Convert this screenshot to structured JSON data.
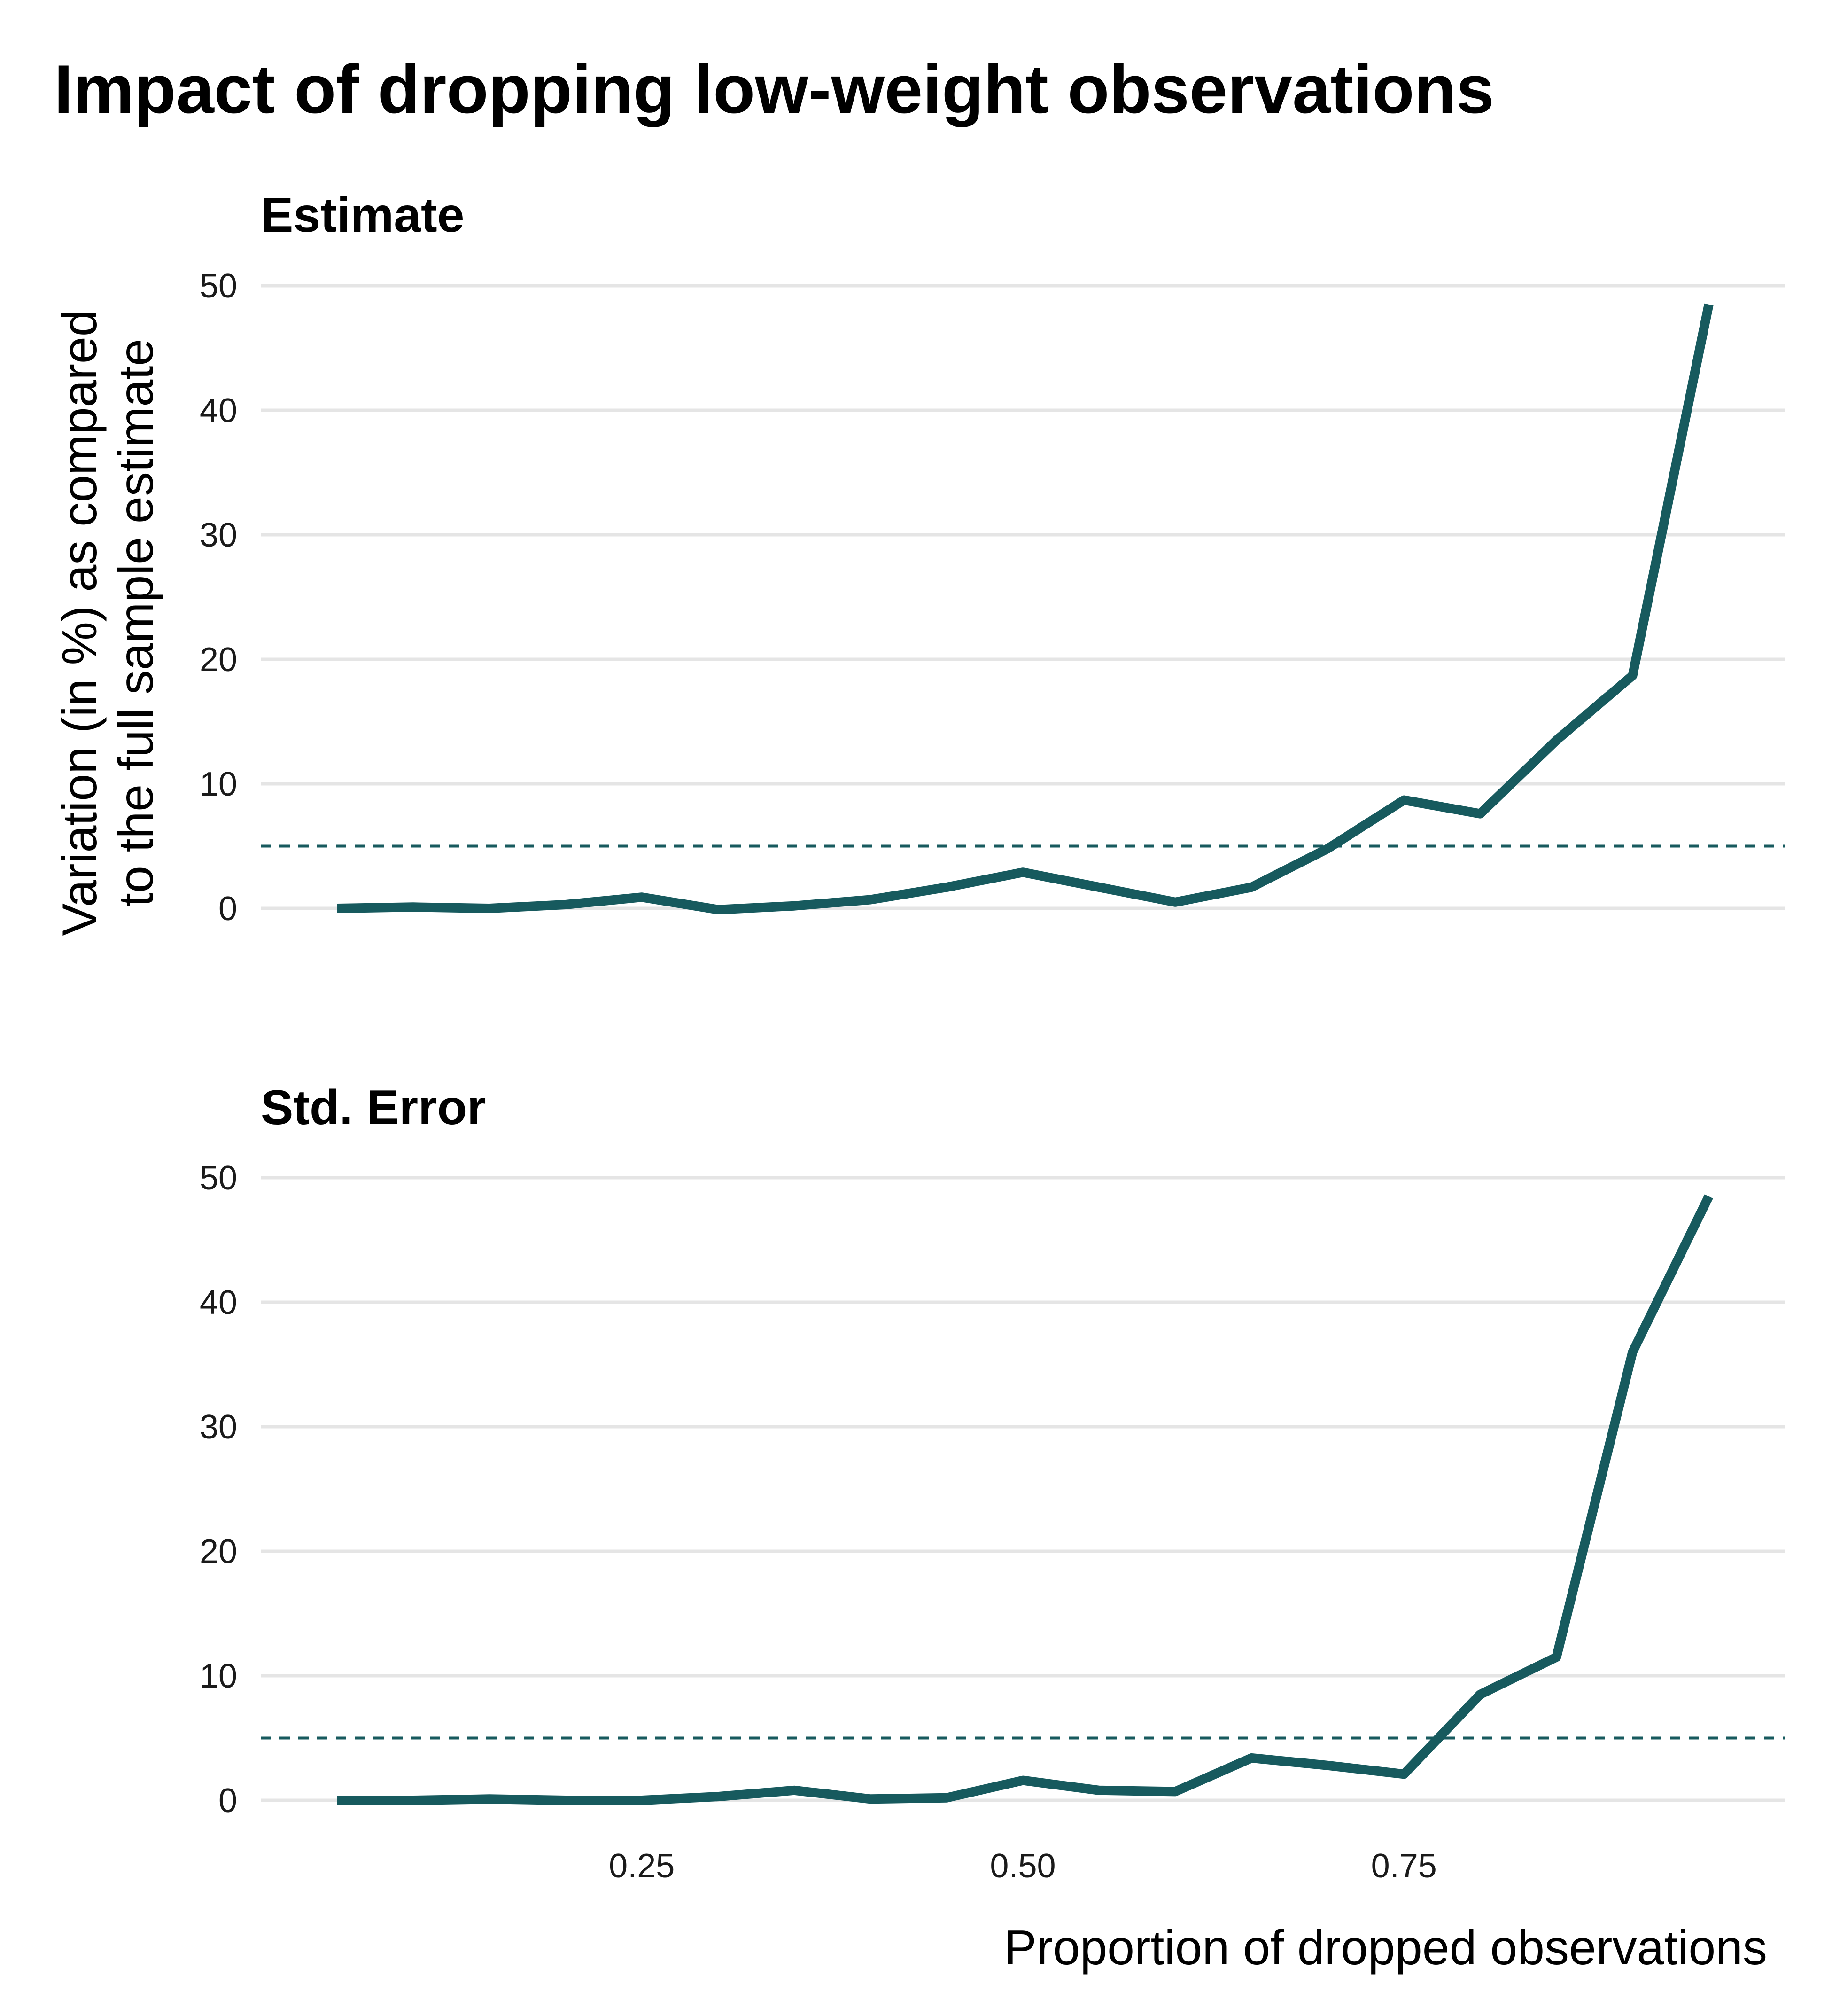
{
  "title": "Impact of dropping low-weight observations",
  "ylabel_line1": "Variation (in %) as compared",
  "ylabel_line2": "to the full sample estimate",
  "xlabel": "Proportion of dropped observations",
  "colors": {
    "series": "#175a5e",
    "grid": "#e5e5e5"
  },
  "chart_data": [
    {
      "type": "line",
      "title": "Estimate",
      "xlim": [
        0.0,
        1.0
      ],
      "ylim": [
        -5,
        52
      ],
      "yticks": [
        0,
        10,
        20,
        30,
        40,
        50
      ],
      "reference_line": 5,
      "x": [
        0.05,
        0.1,
        0.15,
        0.2,
        0.25,
        0.3,
        0.35,
        0.4,
        0.45,
        0.5,
        0.55,
        0.6,
        0.65,
        0.7,
        0.75,
        0.8,
        0.85,
        0.9,
        0.95
      ],
      "series": [
        {
          "values": [
            0.0,
            0.1,
            0.0,
            0.3,
            0.9,
            -0.1,
            0.2,
            0.7,
            1.7,
            2.9,
            1.7,
            0.5,
            1.7,
            4.8,
            8.7,
            7.6,
            13.5,
            18.7,
            48.5
          ]
        }
      ]
    },
    {
      "type": "line",
      "title": "Std. Error",
      "xlim": [
        0.0,
        1.0
      ],
      "ylim": [
        -5,
        52
      ],
      "yticks": [
        0,
        10,
        20,
        30,
        40,
        50
      ],
      "xticks": [
        "0.25",
        "0.50",
        "0.75"
      ],
      "xtick_values": [
        0.25,
        0.5,
        0.75
      ],
      "reference_line": 5,
      "x": [
        0.05,
        0.1,
        0.15,
        0.2,
        0.25,
        0.3,
        0.35,
        0.4,
        0.45,
        0.5,
        0.55,
        0.6,
        0.65,
        0.7,
        0.75,
        0.8,
        0.85,
        0.9,
        0.95
      ],
      "series": [
        {
          "values": [
            0.0,
            0.0,
            0.1,
            0.0,
            0.0,
            0.3,
            0.8,
            0.1,
            0.2,
            1.6,
            0.8,
            0.7,
            3.4,
            2.8,
            2.1,
            8.5,
            11.5,
            36.0,
            48.5
          ]
        }
      ]
    }
  ]
}
